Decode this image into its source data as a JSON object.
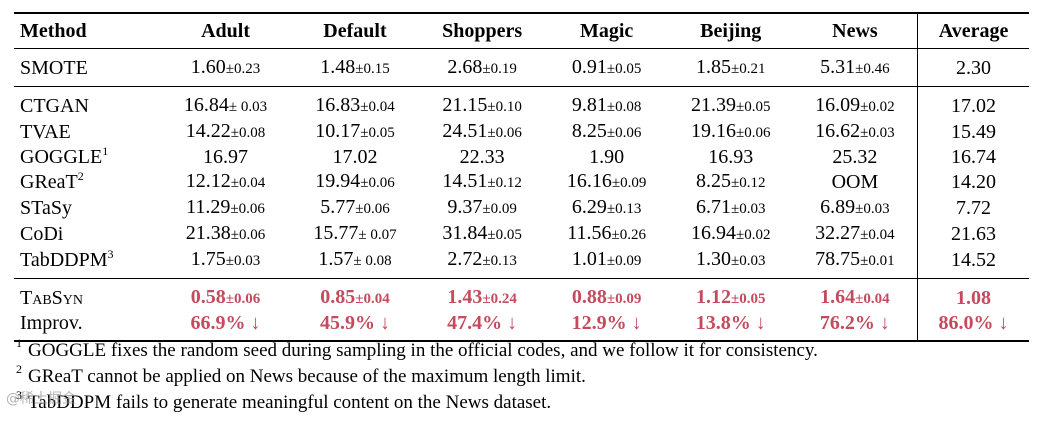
{
  "header": {
    "method": "Method",
    "datasets": [
      "Adult",
      "Default",
      "Shoppers",
      "Magic",
      "Beijing",
      "News"
    ],
    "average": "Average"
  },
  "groups": [
    {
      "rows": [
        {
          "method": "SMOTE",
          "sup": "",
          "cells": [
            {
              "v": "1.60",
              "s": "±0.23"
            },
            {
              "v": "1.48",
              "s": "±0.15"
            },
            {
              "v": "2.68",
              "s": "±0.19"
            },
            {
              "v": "0.91",
              "s": "±0.05"
            },
            {
              "v": "1.85",
              "s": "±0.21"
            },
            {
              "v": "5.31",
              "s": "±0.46"
            }
          ],
          "avg": "2.30"
        }
      ]
    },
    {
      "rows": [
        {
          "method": "CTGAN",
          "sup": "",
          "cells": [
            {
              "v": "16.84",
              "s": "± 0.03"
            },
            {
              "v": "16.83",
              "s": "±0.04"
            },
            {
              "v": "21.15",
              "s": "±0.10"
            },
            {
              "v": "9.81",
              "s": "±0.08"
            },
            {
              "v": "21.39",
              "s": "±0.05"
            },
            {
              "v": "16.09",
              "s": "±0.02"
            }
          ],
          "avg": "17.02"
        },
        {
          "method": "TVAE",
          "sup": "",
          "cells": [
            {
              "v": "14.22",
              "s": "±0.08"
            },
            {
              "v": "10.17",
              "s": "±0.05"
            },
            {
              "v": "24.51",
              "s": "±0.06"
            },
            {
              "v": "8.25",
              "s": "±0.06"
            },
            {
              "v": "19.16",
              "s": "±0.06"
            },
            {
              "v": "16.62",
              "s": "±0.03"
            }
          ],
          "avg": "15.49"
        },
        {
          "method": "GOGGLE",
          "sup": "1",
          "cells": [
            {
              "v": "16.97",
              "s": ""
            },
            {
              "v": "17.02",
              "s": ""
            },
            {
              "v": "22.33",
              "s": ""
            },
            {
              "v": "1.90",
              "s": ""
            },
            {
              "v": "16.93",
              "s": ""
            },
            {
              "v": "25.32",
              "s": ""
            }
          ],
          "avg": "16.74"
        },
        {
          "method": "GReaT",
          "sup": "2",
          "cells": [
            {
              "v": "12.12",
              "s": "±0.04"
            },
            {
              "v": "19.94",
              "s": "±0.06"
            },
            {
              "v": "14.51",
              "s": "±0.12"
            },
            {
              "v": "16.16",
              "s": "±0.09"
            },
            {
              "v": "8.25",
              "s": "±0.12"
            },
            {
              "v": "OOM",
              "s": ""
            }
          ],
          "avg": "14.20"
        },
        {
          "method": "STaSy",
          "sup": "",
          "cells": [
            {
              "v": "11.29",
              "s": "±0.06"
            },
            {
              "v": "5.77",
              "s": "±0.06"
            },
            {
              "v": "9.37",
              "s": "±0.09"
            },
            {
              "v": "6.29",
              "s": "±0.13"
            },
            {
              "v": "6.71",
              "s": "±0.03"
            },
            {
              "v": "6.89",
              "s": "±0.03"
            }
          ],
          "avg": "7.72"
        },
        {
          "method": "CoDi",
          "sup": "",
          "cells": [
            {
              "v": "21.38",
              "s": "±0.06"
            },
            {
              "v": "15.77",
              "s": "± 0.07"
            },
            {
              "v": "31.84",
              "s": "±0.05"
            },
            {
              "v": "11.56",
              "s": "±0.26"
            },
            {
              "v": "16.94",
              "s": "±0.02"
            },
            {
              "v": "32.27",
              "s": "±0.04"
            }
          ],
          "avg": "21.63"
        },
        {
          "method": "TabDDPM",
          "sup": "3",
          "cells": [
            {
              "v": "1.75",
              "s": "±0.03"
            },
            {
              "v": "1.57",
              "s": "± 0.08"
            },
            {
              "v": "2.72",
              "s": "±0.13"
            },
            {
              "v": "1.01",
              "s": "±0.09"
            },
            {
              "v": "1.30",
              "s": "±0.03"
            },
            {
              "v": "78.75",
              "s": "±0.01"
            }
          ],
          "avg": "14.52"
        }
      ]
    }
  ],
  "tabsyn": {
    "method": "TabSyn",
    "cells": [
      {
        "v": "0.58",
        "s": "±0.06"
      },
      {
        "v": "0.85",
        "s": "±0.04"
      },
      {
        "v": "1.43",
        "s": "±0.24"
      },
      {
        "v": "0.88",
        "s": "±0.09"
      },
      {
        "v": "1.12",
        "s": "±0.05"
      },
      {
        "v": "1.64",
        "s": "±0.04"
      }
    ],
    "avg": "1.08"
  },
  "improv": {
    "method": "Improv.",
    "cells": [
      "66.9% ↓",
      "45.9% ↓",
      "47.4% ↓",
      "12.9% ↓",
      "13.8% ↓",
      "76.2% ↓"
    ],
    "avg": "86.0% ↓"
  },
  "highlight_color": "#c44a5d",
  "footnotes": [
    {
      "mark": "1",
      "text": "GOGGLE fixes the random seed during sampling in the official codes, and we follow it for consistency."
    },
    {
      "mark": "2",
      "text": "GReaT cannot be applied on News because of the maximum length limit."
    },
    {
      "mark": "3",
      "text": "TabDDPM fails to generate meaningful content on the News dataset."
    }
  ],
  "watermark": "@稀土掘金"
}
